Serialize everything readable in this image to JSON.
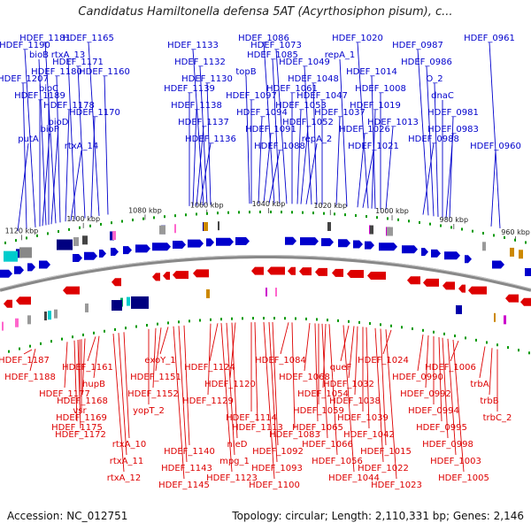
{
  "title": "Candidatus Hamiltonella defensa 5AT (Acyrthosiphon pisum), c...",
  "accession": "Accession: NC_012751",
  "summary": "Topology: circular; Length: 2,110,331 bp; Genes: 2,146",
  "colors": {
    "forward": "#0000cc",
    "reverse": "#dd0000",
    "backbone": "#888888",
    "tick": "#009900"
  },
  "kbp_ticks": [
    {
      "label": "1120 kbp",
      "pos": 1120
    },
    {
      "label": "1100 kbp",
      "pos": 1100
    },
    {
      "label": "1080 kbp",
      "pos": 1080
    },
    {
      "label": "1060 kbp",
      "pos": 1060
    },
    {
      "label": "1040 kbp",
      "pos": 1040
    },
    {
      "label": "1020 kbp",
      "pos": 1020
    },
    {
      "label": "1000 kbp",
      "pos": 1000
    },
    {
      "label": "980 kbp",
      "pos": 980
    },
    {
      "label": "960 kbp",
      "pos": 960
    }
  ],
  "top_labels": [
    {
      "text": "HDEF_1181",
      "gene_x": 63
    },
    {
      "text": "bioB",
      "gene_x": 52
    },
    {
      "text": "HDEF_1180",
      "gene_x": 68
    },
    {
      "text": "bioC",
      "gene_x": 55
    },
    {
      "text": "HDEF_1178",
      "gene_x": 74
    },
    {
      "text": "bioD",
      "gene_x": 58
    },
    {
      "text": "putA",
      "gene_x": 20
    },
    {
      "text": "HDEF_1190",
      "gene_x": 40
    },
    {
      "text": "HDEF_1171",
      "gene_x": 96
    },
    {
      "text": "HDEF_1207",
      "gene_x": 30
    },
    {
      "text": "HDEF_1189",
      "gene_x": 45
    },
    {
      "text": "HDEF_1170",
      "gene_x": 103
    },
    {
      "text": "bioF",
      "gene_x": 48
    },
    {
      "text": "rtxA_14",
      "gene_x": 80
    },
    {
      "text": "HDEF_1165",
      "gene_x": 112
    },
    {
      "text": "rtxA_13",
      "gene_x": 85
    },
    {
      "text": "HDEF_1160",
      "gene_x": 122
    },
    {
      "text": "HDEF_1139",
      "gene_x": 214
    },
    {
      "text": "HDEF_1138",
      "gene_x": 218
    },
    {
      "text": "HDEF_1137",
      "gene_x": 222
    },
    {
      "text": "HDEF_1136",
      "gene_x": 226
    },
    {
      "text": "HDEF_1133",
      "gene_x": 230
    },
    {
      "text": "HDEF_1132",
      "gene_x": 234
    },
    {
      "text": "HDEF_1130",
      "gene_x": 238
    },
    {
      "text": "HDEF_1097",
      "gene_x": 284
    },
    {
      "text": "HDEF_1094",
      "gene_x": 292
    },
    {
      "text": "HDEF_1091",
      "gene_x": 298
    },
    {
      "text": "HDEF_1088",
      "gene_x": 304
    },
    {
      "text": "HDEF_1086",
      "gene_x": 310
    },
    {
      "text": "HDEF_1085",
      "gene_x": 316
    },
    {
      "text": "topB",
      "gene_x": 282
    },
    {
      "text": "HDEF_1061",
      "gene_x": 330
    },
    {
      "text": "HDEF_1053",
      "gene_x": 336
    },
    {
      "text": "HDEF_1052",
      "gene_x": 340
    },
    {
      "text": "repA_2",
      "gene_x": 346
    },
    {
      "text": "HDEF_1073",
      "gene_x": 324
    },
    {
      "text": "HDEF_1049",
      "gene_x": 352
    },
    {
      "text": "HDEF_1048",
      "gene_x": 358
    },
    {
      "text": "HDEF_1047",
      "gene_x": 364
    },
    {
      "text": "HDEF_1037",
      "gene_x": 380
    },
    {
      "text": "HDEF_1026",
      "gene_x": 404
    },
    {
      "text": "HDEF_1021",
      "gene_x": 410
    },
    {
      "text": "HDEF_1020",
      "gene_x": 416
    },
    {
      "text": "repA_1",
      "gene_x": 392
    },
    {
      "text": "HDEF_1014",
      "gene_x": 424
    },
    {
      "text": "HDEF_1008",
      "gene_x": 430
    },
    {
      "text": "HDEF_1019",
      "gene_x": 420
    },
    {
      "text": "HDEF_1013",
      "gene_x": 436
    },
    {
      "text": "HDEF_0988",
      "gene_x": 478
    },
    {
      "text": "HDEF_0987",
      "gene_x": 484
    },
    {
      "text": "HDEF_0986",
      "gene_x": 490
    },
    {
      "text": "O_2",
      "gene_x": 495
    },
    {
      "text": "dnaC",
      "gene_x": 500
    },
    {
      "text": "HDEF_0981",
      "gene_x": 508
    },
    {
      "text": "HDEF_0983",
      "gene_x": 504
    },
    {
      "text": "HDEF_0960",
      "gene_x": 555
    },
    {
      "text": "HDEF_0961",
      "gene_x": 565
    }
  ],
  "bottom_labels": [
    {
      "text": "HDEF_1187",
      "gene_x": 36
    },
    {
      "text": "HDEF_1188",
      "gene_x": 40
    },
    {
      "text": "HDEF_1177",
      "gene_x": 76
    },
    {
      "text": "vsr",
      "gene_x": 90
    },
    {
      "text": "HDEF_1175",
      "gene_x": 84
    },
    {
      "text": "rtxA_10",
      "gene_x": 140
    },
    {
      "text": "rtxA_11",
      "gene_x": 134
    },
    {
      "text": "rtxA_12",
      "gene_x": 128
    },
    {
      "text": "HDEF_1161",
      "gene_x": 108
    },
    {
      "text": "hupB",
      "gene_x": 112
    },
    {
      "text": "HDEF_1168",
      "gene_x": 96
    },
    {
      "text": "HDEF_1169",
      "gene_x": 92
    },
    {
      "text": "HDEF_1172",
      "gene_x": 88
    },
    {
      "text": "HDEF_1140",
      "gene_x": 208
    },
    {
      "text": "HDEF_1143",
      "gene_x": 202
    },
    {
      "text": "HDEF_1145",
      "gene_x": 196
    },
    {
      "text": "exoY_1",
      "gene_x": 190
    },
    {
      "text": "HDEF_1151",
      "gene_x": 182
    },
    {
      "text": "HDEF_1152",
      "gene_x": 176
    },
    {
      "text": "yopT_2",
      "gene_x": 168
    },
    {
      "text": "HDEF_1113",
      "gene_x": 288
    },
    {
      "text": "nleD",
      "gene_x": 262
    },
    {
      "text": "mpg_1",
      "gene_x": 256
    },
    {
      "text": "HDEF_1123",
      "gene_x": 250
    },
    {
      "text": "HDEF_1124",
      "gene_x": 246
    },
    {
      "text": "HDEF_1120",
      "gene_x": 266
    },
    {
      "text": "HDEF_1129",
      "gene_x": 238
    },
    {
      "text": "HDEF_1114",
      "gene_x": 284
    },
    {
      "text": "HDEF_1083",
      "gene_x": 330
    },
    {
      "text": "HDEF_1092",
      "gene_x": 308
    },
    {
      "text": "HDEF_1093",
      "gene_x": 304
    },
    {
      "text": "HDEF_1100",
      "gene_x": 298
    },
    {
      "text": "HDEF_1084",
      "gene_x": 326
    },
    {
      "text": "HDEF_1068",
      "gene_x": 350
    },
    {
      "text": "HDEF_1054",
      "gene_x": 368
    },
    {
      "text": "HDEF_1059",
      "gene_x": 360
    },
    {
      "text": "HDEF_1065",
      "gene_x": 356
    },
    {
      "text": "HDEF_1066",
      "gene_x": 364
    },
    {
      "text": "HDEF_1056",
      "gene_x": 372
    },
    {
      "text": "HDEF_1044",
      "gene_x": 388
    },
    {
      "text": "queF",
      "gene_x": 394
    },
    {
      "text": "HDEF_1032",
      "gene_x": 400
    },
    {
      "text": "HDEF_1038",
      "gene_x": 404
    },
    {
      "text": "HDEF_1039",
      "gene_x": 410
    },
    {
      "text": "HDEF_1042",
      "gene_x": 414
    },
    {
      "text": "HDEF_1015",
      "gene_x": 430
    },
    {
      "text": "HDEF_1022",
      "gene_x": 424
    },
    {
      "text": "HDEF_1023",
      "gene_x": 436
    },
    {
      "text": "HDEF_1024",
      "gene_x": 442
    },
    {
      "text": "HDEF_0990",
      "gene_x": 478
    },
    {
      "text": "HDEF_0992",
      "gene_x": 484
    },
    {
      "text": "HDEF_0994",
      "gene_x": 490
    },
    {
      "text": "HDEF_0995",
      "gene_x": 496
    },
    {
      "text": "HDEF_0998",
      "gene_x": 500
    },
    {
      "text": "HDEF_1003",
      "gene_x": 506
    },
    {
      "text": "HDEF_1005",
      "gene_x": 512
    },
    {
      "text": "HDEF_1006",
      "gene_x": 518
    },
    {
      "text": "trbA",
      "gene_x": 548
    },
    {
      "text": "trbB",
      "gene_x": 556
    },
    {
      "text": "trbC_2",
      "gene_x": 562
    }
  ]
}
